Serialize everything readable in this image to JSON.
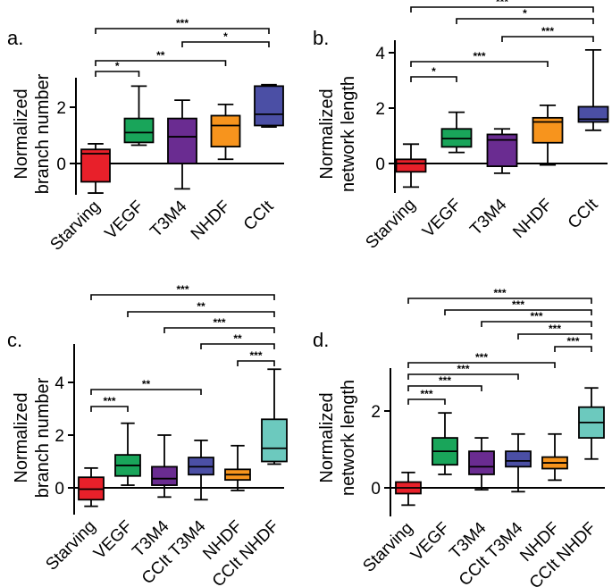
{
  "figure": {
    "colors": {
      "starving": "#e8202a",
      "vegf": "#19a55a",
      "t3m4": "#6a2c91",
      "nhdf": "#f7941d",
      "cclt": "#4b4fa5",
      "cclt_nhdf": "#6cc9be"
    }
  },
  "chart_data": [
    {
      "id": "a",
      "panel_label": "a.",
      "type": "boxplot",
      "ylabel_lines": [
        "Normalized",
        "branch number"
      ],
      "ylim": [
        -1.1,
        3.0
      ],
      "yticks": [
        0,
        2
      ],
      "categories": [
        "Starving",
        "VEGF",
        "T3M4",
        "NHDF",
        "CCIt"
      ],
      "boxes": [
        {
          "min": -1.05,
          "q1": -0.65,
          "median": 0.35,
          "q3": 0.5,
          "max": 0.7,
          "color": "#e8202a"
        },
        {
          "min": 0.65,
          "q1": 0.75,
          "median": 1.1,
          "q3": 1.6,
          "max": 2.75,
          "color": "#19a55a"
        },
        {
          "min": -0.9,
          "q1": 0.0,
          "median": 0.95,
          "q3": 1.6,
          "max": 2.25,
          "color": "#6a2c91"
        },
        {
          "min": 0.15,
          "q1": 0.6,
          "median": 1.35,
          "q3": 1.7,
          "max": 2.1,
          "color": "#f7941d"
        },
        {
          "min": 1.3,
          "q1": 1.35,
          "median": 1.75,
          "q3": 2.75,
          "max": 2.8,
          "color": "#4b4fa5"
        }
      ],
      "significance": [
        {
          "from": 0,
          "to": 4,
          "label": "***"
        },
        {
          "from": 2,
          "to": 4,
          "label": "*"
        },
        {
          "from": 0,
          "to": 3,
          "label": "**"
        },
        {
          "from": 0,
          "to": 1,
          "label": "*"
        }
      ]
    },
    {
      "id": "b",
      "panel_label": "b.",
      "type": "boxplot",
      "ylabel_lines": [
        "Normalized",
        "network length"
      ],
      "ylim": [
        -1.0,
        4.3
      ],
      "yticks": [
        0,
        2,
        4
      ],
      "categories": [
        "Starving",
        "VEGF",
        "T3M4",
        "NHDF",
        "CCIt"
      ],
      "boxes": [
        {
          "min": -0.85,
          "q1": -0.3,
          "median": 0.0,
          "q3": 0.15,
          "max": 0.7,
          "color": "#e8202a"
        },
        {
          "min": 0.4,
          "q1": 0.6,
          "median": 0.9,
          "q3": 1.25,
          "max": 1.85,
          "color": "#19a55a"
        },
        {
          "min": -0.35,
          "q1": -0.1,
          "median": 0.85,
          "q3": 1.05,
          "max": 1.25,
          "color": "#6a2c91"
        },
        {
          "min": -0.05,
          "q1": 0.75,
          "median": 1.5,
          "q3": 1.65,
          "max": 2.1,
          "color": "#f7941d"
        },
        {
          "min": 1.2,
          "q1": 1.5,
          "median": 1.6,
          "q3": 2.05,
          "max": 4.1,
          "color": "#4b4fa5"
        }
      ],
      "significance": [
        {
          "from": 0,
          "to": 4,
          "label": "***"
        },
        {
          "from": 1,
          "to": 4,
          "label": "*"
        },
        {
          "from": 2,
          "to": 4,
          "label": "***"
        },
        {
          "from": 0,
          "to": 3,
          "label": "***"
        },
        {
          "from": 0,
          "to": 1,
          "label": "*"
        }
      ]
    },
    {
      "id": "c",
      "panel_label": "c.",
      "type": "boxplot",
      "ylabel_lines": [
        "Normalized",
        "branch number"
      ],
      "ylim": [
        -1.0,
        5.0
      ],
      "yticks": [
        0,
        2,
        4
      ],
      "categories": [
        "Starving",
        "VEGF",
        "T3M4",
        "CCIt T3M4",
        "NHDF",
        "CCIt NHDF"
      ],
      "boxes": [
        {
          "min": -0.7,
          "q1": -0.45,
          "median": -0.05,
          "q3": 0.4,
          "max": 0.75,
          "color": "#e8202a"
        },
        {
          "min": 0.1,
          "q1": 0.45,
          "median": 0.85,
          "q3": 1.25,
          "max": 2.45,
          "color": "#19a55a"
        },
        {
          "min": -0.35,
          "q1": 0.1,
          "median": 0.35,
          "q3": 0.8,
          "max": 2.0,
          "color": "#6a2c91"
        },
        {
          "min": -0.45,
          "q1": 0.5,
          "median": 0.8,
          "q3": 1.15,
          "max": 1.8,
          "color": "#4b4fa5"
        },
        {
          "min": -0.1,
          "q1": 0.3,
          "median": 0.5,
          "q3": 0.7,
          "max": 1.6,
          "color": "#f7941d"
        },
        {
          "min": 0.9,
          "q1": 1.0,
          "median": 1.5,
          "q3": 2.6,
          "max": 4.5,
          "color": "#6cc9be"
        }
      ],
      "significance": [
        {
          "from": 0,
          "to": 5,
          "label": "***"
        },
        {
          "from": 1,
          "to": 5,
          "label": "**"
        },
        {
          "from": 2,
          "to": 5,
          "label": "***"
        },
        {
          "from": 3,
          "to": 5,
          "label": "**"
        },
        {
          "from": 4,
          "to": 5,
          "label": "***"
        },
        {
          "from": 0,
          "to": 3,
          "label": "**"
        },
        {
          "from": 0,
          "to": 1,
          "label": "***"
        }
      ]
    },
    {
      "id": "d",
      "panel_label": "d.",
      "type": "boxplot",
      "ylabel_lines": [
        "Normalized",
        "network length"
      ],
      "ylim": [
        -0.8,
        3.0
      ],
      "yticks": [
        0,
        2
      ],
      "categories": [
        "Starving",
        "VEGF",
        "T3M4",
        "CCIt T3M4",
        "NHDF",
        "CCIt NHDF"
      ],
      "boxes": [
        {
          "min": -0.45,
          "q1": -0.15,
          "median": 0.0,
          "q3": 0.15,
          "max": 0.4,
          "color": "#e8202a"
        },
        {
          "min": 0.35,
          "q1": 0.6,
          "median": 0.95,
          "q3": 1.3,
          "max": 1.95,
          "color": "#19a55a"
        },
        {
          "min": -0.05,
          "q1": 0.35,
          "median": 0.55,
          "q3": 0.95,
          "max": 1.3,
          "color": "#6a2c91"
        },
        {
          "min": -0.1,
          "q1": 0.55,
          "median": 0.7,
          "q3": 0.95,
          "max": 1.4,
          "color": "#4b4fa5"
        },
        {
          "min": 0.2,
          "q1": 0.5,
          "median": 0.65,
          "q3": 0.8,
          "max": 1.4,
          "color": "#f7941d"
        },
        {
          "min": 0.75,
          "q1": 1.3,
          "median": 1.7,
          "q3": 2.1,
          "max": 2.6,
          "color": "#6cc9be"
        }
      ],
      "significance": [
        {
          "from": 0,
          "to": 5,
          "label": "***"
        },
        {
          "from": 1,
          "to": 5,
          "label": "***"
        },
        {
          "from": 2,
          "to": 5,
          "label": "***"
        },
        {
          "from": 3,
          "to": 5,
          "label": "***"
        },
        {
          "from": 4,
          "to": 5,
          "label": "***"
        },
        {
          "from": 0,
          "to": 4,
          "label": "***"
        },
        {
          "from": 0,
          "to": 3,
          "label": "***"
        },
        {
          "from": 0,
          "to": 2,
          "label": "***"
        },
        {
          "from": 0,
          "to": 1,
          "label": "***"
        }
      ]
    }
  ]
}
